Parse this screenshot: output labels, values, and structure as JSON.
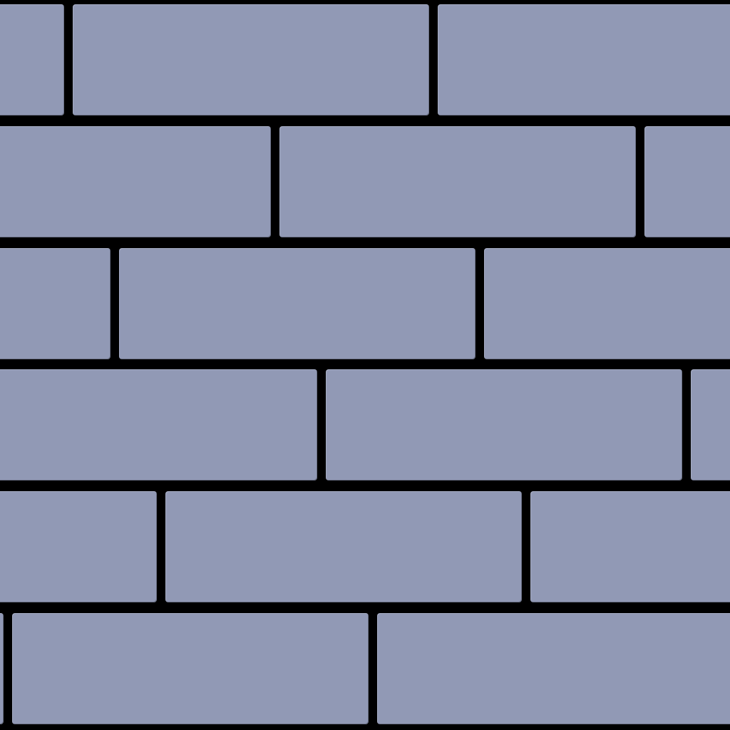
{
  "texture": {
    "name": "brick-wall",
    "brick_color": "#9199b5",
    "mortar_color": "#000000",
    "rows": 6,
    "brick_length_units": 500,
    "row_offsets_units": [
      90,
      380,
      155,
      445,
      220,
      5
    ]
  }
}
